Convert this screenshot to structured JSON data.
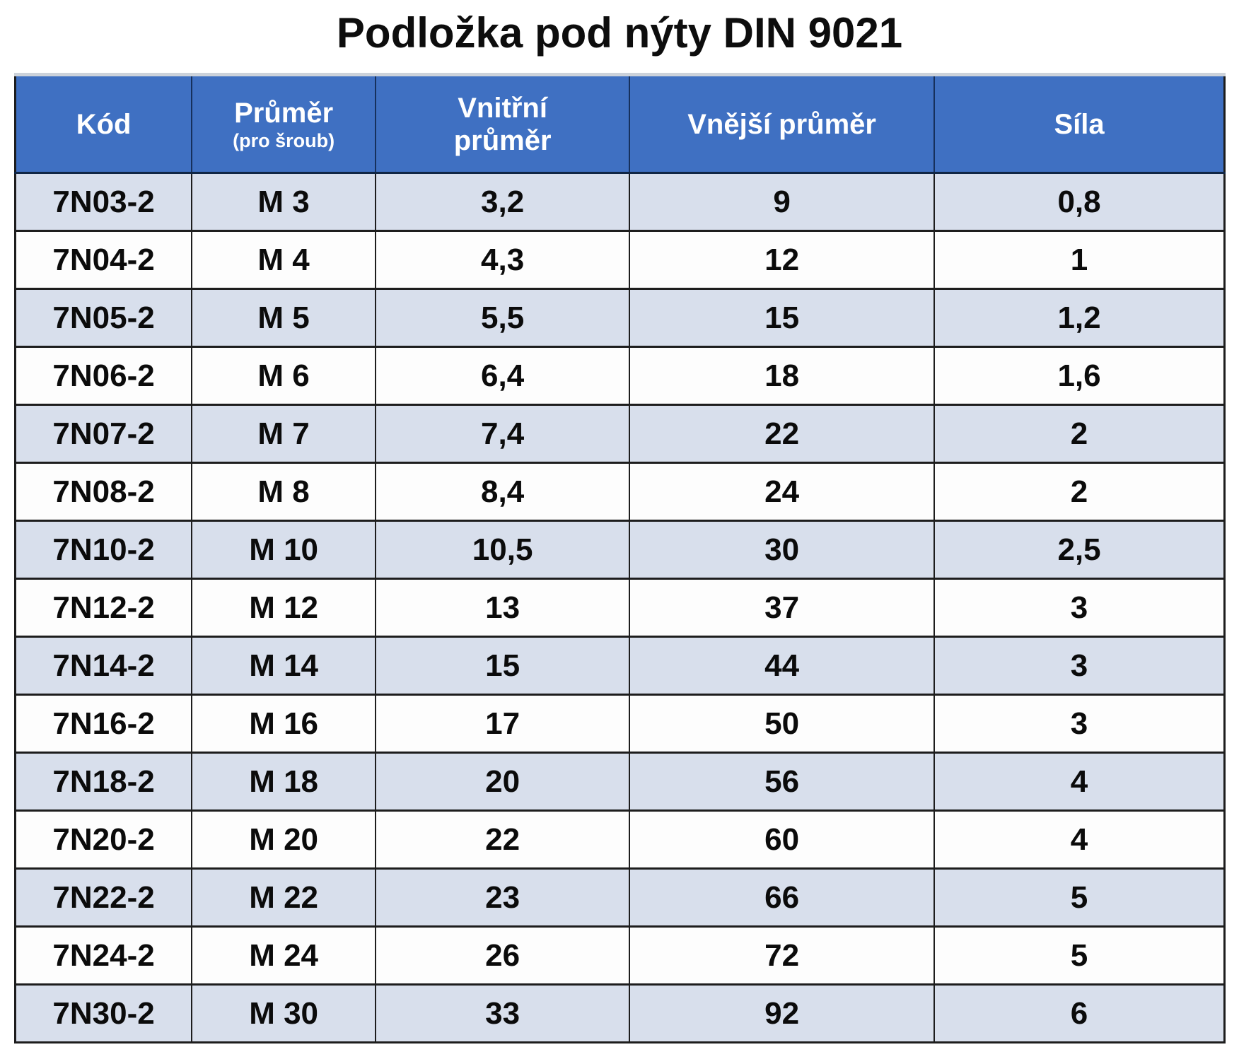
{
  "page": {
    "title": "Podložka pod nýty DIN 9021"
  },
  "colors": {
    "header_bg": "#3f70c2",
    "header_text": "#ffffff",
    "row_alt_bg": "#d8dfec",
    "row_bg": "#fdfdfd",
    "border": "#1d1d1d",
    "title_text": "#0d0d0d"
  },
  "table": {
    "columns": [
      {
        "label": "Kód",
        "sub": ""
      },
      {
        "label": "Průměr",
        "sub": "(pro šroub)"
      },
      {
        "label": "Vnitřní průměr",
        "sub": ""
      },
      {
        "label": "Vnější průměr",
        "sub": ""
      },
      {
        "label": "Síla",
        "sub": ""
      }
    ],
    "rows": [
      [
        "7N03-2",
        "M 3",
        "3,2",
        "9",
        "0,8"
      ],
      [
        "7N04-2",
        "M 4",
        "4,3",
        "12",
        "1"
      ],
      [
        "7N05-2",
        "M 5",
        "5,5",
        "15",
        "1,2"
      ],
      [
        "7N06-2",
        "M 6",
        "6,4",
        "18",
        "1,6"
      ],
      [
        "7N07-2",
        "M 7",
        "7,4",
        "22",
        "2"
      ],
      [
        "7N08-2",
        "M 8",
        "8,4",
        "24",
        "2"
      ],
      [
        "7N10-2",
        "M 10",
        "10,5",
        "30",
        "2,5"
      ],
      [
        "7N12-2",
        "M 12",
        "13",
        "37",
        "3"
      ],
      [
        "7N14-2",
        "M 14",
        "15",
        "44",
        "3"
      ],
      [
        "7N16-2",
        "M 16",
        "17",
        "50",
        "3"
      ],
      [
        "7N18-2",
        "M 18",
        "20",
        "56",
        "4"
      ],
      [
        "7N20-2",
        "M 20",
        "22",
        "60",
        "4"
      ],
      [
        "7N22-2",
        "M 22",
        "23",
        "66",
        "5"
      ],
      [
        "7N24-2",
        "M 24",
        "26",
        "72",
        "5"
      ],
      [
        "7N30-2",
        "M 30",
        "33",
        "92",
        "6"
      ]
    ]
  }
}
